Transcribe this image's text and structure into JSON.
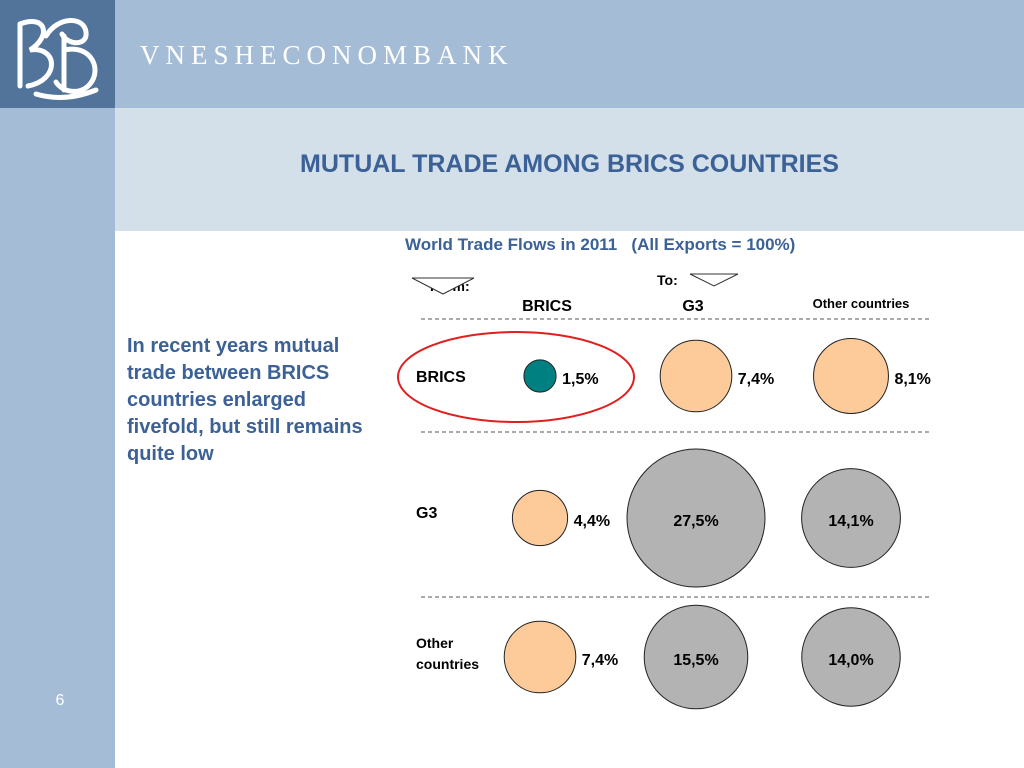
{
  "header": {
    "brand_name": "VNESHECONOMBANK",
    "logo": "VEB monogram logo",
    "colors": {
      "band": "#a5bcd6",
      "logo_box": "#52739a",
      "title_band": "#d3dfe9",
      "title_text": "#3b6196"
    }
  },
  "slide": {
    "title": "MUTUAL TRADE AMONG BRICS COUNTRIES",
    "page_number": "6",
    "note": "In recent years mutual trade between BRICS countries enlarged fivefold, but still remains quite low"
  },
  "chart_data": {
    "type": "bubble",
    "title": "World Trade Flows in 2011   (All Exports = 100%)",
    "from_label": "From:",
    "to_label": "To:",
    "rows": [
      "BRICS",
      "G3",
      "Other countries"
    ],
    "columns": [
      "BRICS",
      "G3",
      "Other countries"
    ],
    "values": [
      [
        1.5,
        7.4,
        8.1
      ],
      [
        4.4,
        27.5,
        14.1
      ],
      [
        7.4,
        15.5,
        14.0
      ]
    ],
    "value_labels": [
      [
        "1,5%",
        "7,4%",
        "8,1%"
      ],
      [
        "4,4%",
        "27,5%",
        "14,1%"
      ],
      [
        "7,4%",
        "15,5%",
        "14,0%"
      ]
    ],
    "colors": {
      "highlight": "#008080",
      "peach": "#fdcb9a",
      "gray": "#b3b3b3",
      "callout_ellipse": "#e02020"
    },
    "bubble_colors": [
      [
        "highlight",
        "peach",
        "peach"
      ],
      [
        "peach",
        "gray",
        "gray"
      ],
      [
        "peach",
        "gray",
        "gray"
      ]
    ],
    "highlighted_cell": "BRICS → BRICS"
  }
}
